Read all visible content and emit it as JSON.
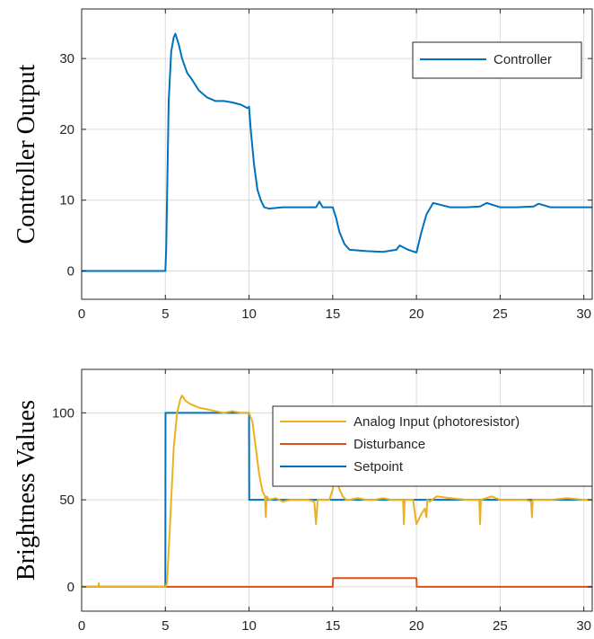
{
  "chart_data": [
    {
      "type": "line",
      "title": "",
      "xlabel": "",
      "ylabel": "Controller Output",
      "xlim": [
        0,
        30.5
      ],
      "ylim": [
        -4,
        37
      ],
      "xticks": [
        0,
        5,
        10,
        15,
        20,
        25,
        30
      ],
      "yticks": [
        0,
        10,
        20,
        30
      ],
      "grid": true,
      "legend_position": "top-right",
      "series": [
        {
          "name": "Controller",
          "color": "#0072BD",
          "x": [
            0,
            5,
            5.05,
            5.2,
            5.35,
            5.5,
            5.6,
            5.8,
            6.0,
            6.3,
            6.6,
            7.0,
            7.5,
            8.0,
            8.5,
            9.0,
            9.5,
            9.9,
            10.0,
            10.1,
            10.3,
            10.5,
            10.7,
            10.9,
            11.2,
            12,
            13,
            14,
            14.2,
            14.4,
            15,
            15.2,
            15.4,
            15.7,
            16,
            17,
            18,
            18.8,
            19,
            19.5,
            20,
            20.3,
            20.6,
            21,
            22,
            23,
            23.8,
            24.2,
            25,
            26,
            27,
            27.3,
            28,
            29,
            30,
            30.5
          ],
          "y": [
            0,
            0,
            3,
            24,
            31,
            33,
            33.5,
            32,
            30,
            28,
            27,
            25.5,
            24.5,
            24,
            24,
            23.8,
            23.5,
            23,
            23.2,
            20,
            15,
            11.5,
            10,
            9,
            8.8,
            9,
            9,
            9,
            9.8,
            9,
            9,
            7.5,
            5.5,
            3.8,
            3,
            2.8,
            2.7,
            3,
            3.6,
            3,
            2.6,
            5.5,
            8,
            9.6,
            9,
            9,
            9.1,
            9.6,
            9,
            9,
            9.1,
            9.5,
            9,
            9,
            9,
            9
          ]
        }
      ]
    },
    {
      "type": "line",
      "title": "",
      "xlabel": "",
      "ylabel": "Brightness Values",
      "xlim": [
        0,
        30.5
      ],
      "ylim": [
        -14,
        125
      ],
      "xticks": [
        0,
        5,
        10,
        15,
        20,
        25,
        30
      ],
      "yticks": [
        0,
        50,
        100
      ],
      "grid": true,
      "legend_position": "top-right",
      "series": [
        {
          "name": "Analog Input (photoresistor)",
          "color": "#EDB120",
          "x": [
            0,
            1,
            1.02,
            1.05,
            5,
            5.1,
            5.3,
            5.5,
            5.7,
            5.9,
            6.0,
            6.2,
            6.5,
            7.0,
            7.5,
            8.0,
            8.5,
            9.0,
            9.5,
            10.0,
            10.2,
            10.4,
            10.6,
            10.8,
            10.95,
            11.0,
            11.05,
            11.2,
            11.6,
            12.0,
            12.5,
            13,
            13.5,
            13.9,
            14.0,
            14.1,
            14.5,
            14.8,
            15.0,
            15.1,
            15.2,
            15.4,
            15.6,
            15.8,
            16.0,
            16.5,
            17,
            17.5,
            18,
            18.5,
            19,
            19.2,
            19.25,
            19.3,
            19.5,
            19.8,
            20.0,
            20.1,
            20.3,
            20.5,
            20.6,
            20.65,
            20.8,
            21.2,
            22,
            23,
            23.5,
            23.75,
            23.8,
            23.85,
            24.5,
            25,
            26,
            26.5,
            26.85,
            26.9,
            26.95,
            27.5,
            28,
            29,
            30,
            30.5
          ],
          "y": [
            0,
            0,
            2,
            0,
            0,
            2,
            40,
            80,
            100,
            108,
            110,
            107,
            105,
            103,
            102,
            101,
            100,
            101,
            100,
            100,
            95,
            80,
            65,
            55,
            52,
            40,
            52,
            50,
            51,
            49,
            50,
            50,
            50,
            49,
            36,
            50,
            50,
            50,
            56,
            64,
            62,
            56,
            52,
            50,
            50,
            51,
            50,
            50,
            51,
            50,
            50,
            50,
            36,
            50,
            50,
            50,
            36,
            38,
            42,
            45,
            40,
            50,
            49,
            52,
            51,
            50,
            50,
            50,
            36,
            50,
            52,
            50,
            50,
            50,
            49,
            40,
            50,
            50,
            50,
            51,
            50,
            50
          ]
        },
        {
          "name": "Disturbance",
          "color": "#D95319",
          "x": [
            0,
            15,
            15.02,
            20,
            20.02,
            30.5
          ],
          "y": [
            0,
            0,
            5,
            5,
            0,
            0
          ]
        },
        {
          "name": "Setpoint",
          "color": "#0072BD",
          "x": [
            0,
            5,
            5.01,
            10,
            10.01,
            30.5
          ],
          "y": [
            0,
            0,
            100,
            100,
            50,
            50
          ]
        }
      ]
    }
  ]
}
